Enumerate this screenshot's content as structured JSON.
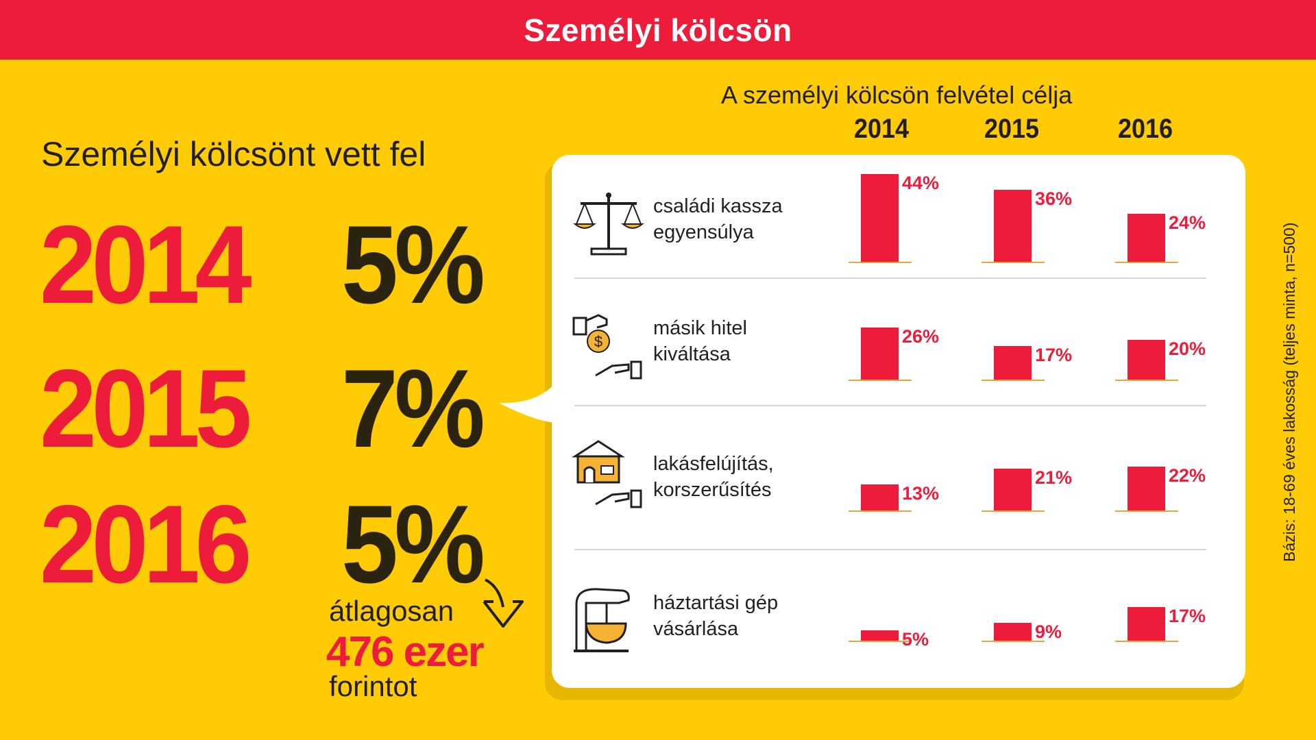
{
  "header": {
    "title": "Személyi kölcsön"
  },
  "left": {
    "heading": "Személyi kölcsönt vett fel",
    "stats": [
      {
        "year": "2014",
        "value": "5%"
      },
      {
        "year": "2015",
        "value": "7%"
      },
      {
        "year": "2016",
        "value": "5%"
      }
    ],
    "average_line1": "átlagosan",
    "average_line2": "476 ezer",
    "average_line3": "forintot"
  },
  "chart_data": {
    "type": "bar",
    "title": "A személyi kölcsön felvétel célja",
    "years": [
      "2014",
      "2015",
      "2016"
    ],
    "categories": [
      {
        "line1": "családi kassza",
        "line2": "egyensúlya",
        "icon": "scales-icon",
        "values": [
          44,
          36,
          24
        ],
        "labels": [
          "44%",
          "36%",
          "24%"
        ]
      },
      {
        "line1": "másik hitel",
        "line2": "kiváltása",
        "icon": "money-hand-icon",
        "values": [
          26,
          17,
          20
        ],
        "labels": [
          "26%",
          "17%",
          "20%"
        ]
      },
      {
        "line1": "lakásfelújítás,",
        "line2": "korszerűsítés",
        "icon": "house-hand-icon",
        "values": [
          13,
          21,
          22
        ],
        "labels": [
          "13%",
          "21%",
          "22%"
        ]
      },
      {
        "line1": "háztartási gép",
        "line2": "vásárlása",
        "icon": "stand-mixer-icon",
        "values": [
          5,
          9,
          17
        ],
        "labels": [
          "5%",
          "9%",
          "17%"
        ]
      }
    ],
    "ylim": [
      0,
      44
    ],
    "colors": {
      "bar": "#ED1C3A",
      "baseline": "#E8A33A",
      "background": "#FFCB05"
    }
  },
  "footnote": "Bázis: 18-69 éves lakosság (teljes minta, n=500)"
}
